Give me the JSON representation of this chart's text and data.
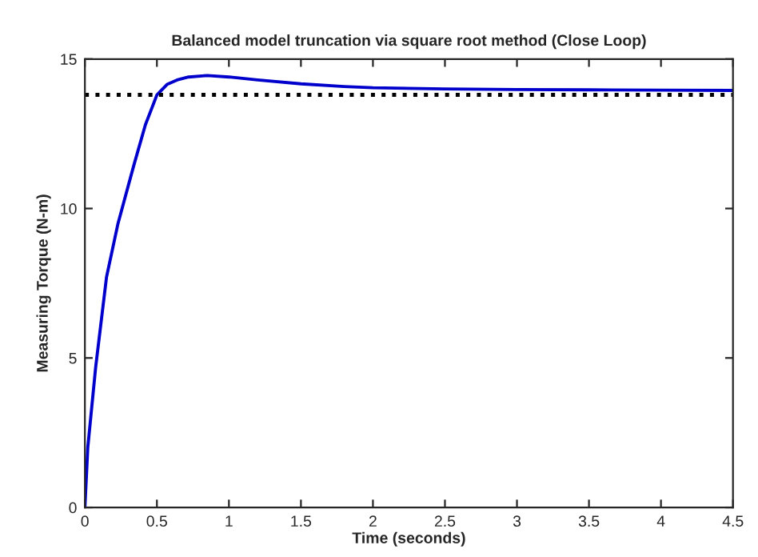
{
  "chart_data": {
    "type": "line",
    "title": "Balanced model truncation via square root method (Close Loop)",
    "xlabel": "Time (seconds)",
    "ylabel": "Measuring Torque (N-m)",
    "series": [
      {
        "color": "#0000cc",
        "x": [
          0,
          0.02,
          0.075,
          0.15,
          0.23,
          0.34,
          0.42,
          0.5,
          0.57,
          0.64,
          0.72,
          0.85,
          1.0,
          1.2,
          1.5,
          1.8,
          2.0,
          2.5,
          3.0,
          3.5,
          4.0,
          4.5
        ],
        "values": [
          0,
          2.0,
          4.7,
          7.7,
          9.5,
          11.45,
          12.8,
          13.8,
          14.15,
          14.3,
          14.4,
          14.45,
          14.4,
          14.3,
          14.17,
          14.08,
          14.04,
          14.0,
          13.98,
          13.97,
          13.96,
          13.95
        ]
      }
    ],
    "ref_lines": [
      {
        "axis": "y",
        "value": 13.8,
        "color": "#000000",
        "line_style": "dotted"
      }
    ],
    "xlim": [
      0,
      4.5
    ],
    "ylim": [
      0,
      15
    ],
    "xticks": [
      0,
      0.5,
      1,
      1.5,
      2,
      2.5,
      3,
      3.5,
      4,
      4.5
    ],
    "yticks": [
      0,
      5,
      10,
      15
    ],
    "grid": false,
    "line_style": "solid"
  }
}
